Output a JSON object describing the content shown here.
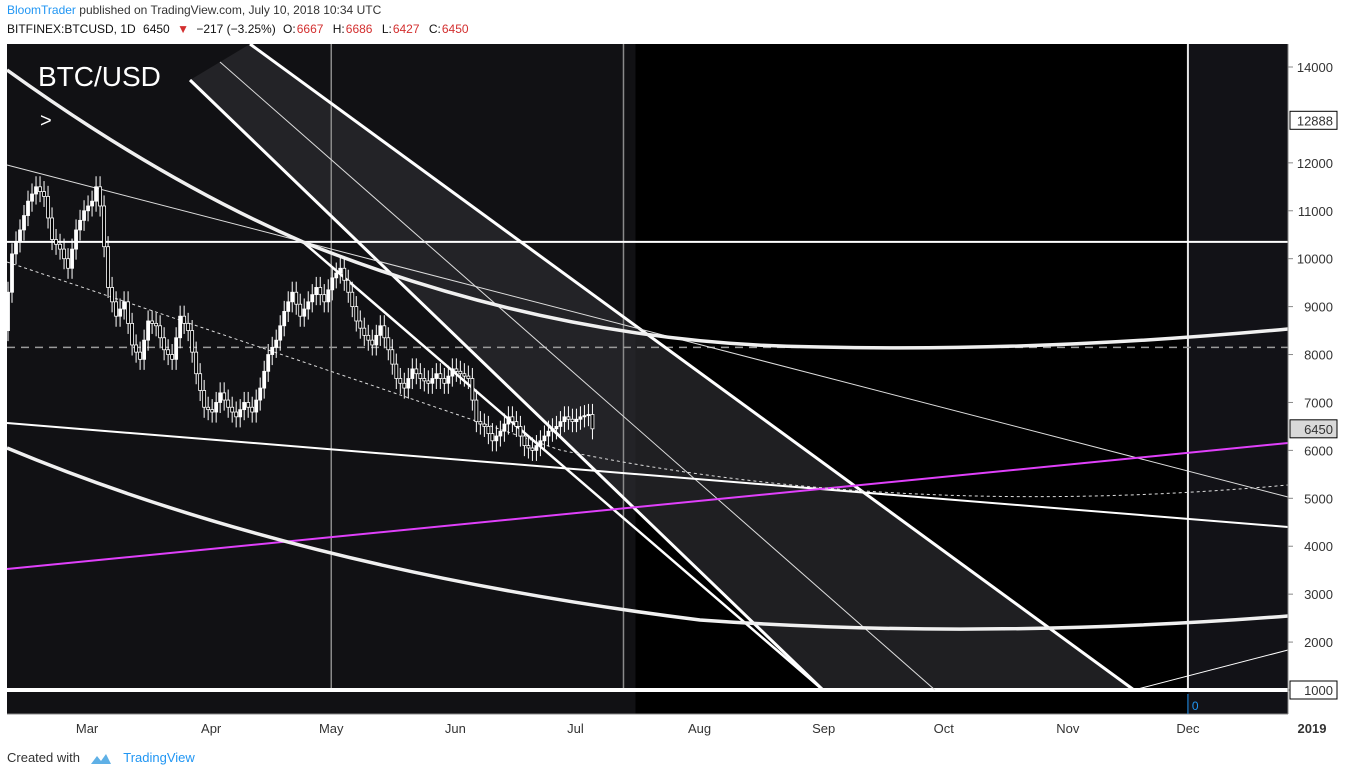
{
  "header": {
    "author": "BloomTrader",
    "published_text": "published on TradingView.com, July 10, 2018 10:34 UTC",
    "symbol": "BITFINEX:BTCUSD, 1D",
    "last": "6450",
    "change_arrow": "▼",
    "change": "−217 (−3.25%)",
    "open_label": "O:",
    "open": "6667",
    "high_label": "H:",
    "high": "6686",
    "low_label": "L:",
    "low": "6427",
    "close_label": "C:",
    "close": "6450"
  },
  "chart_data": {
    "type": "candlestick",
    "title": "BTC/USD",
    "annotation": ">",
    "ylim": [
      500,
      14500
    ],
    "y_ticks": [
      1000,
      2000,
      3000,
      4000,
      5000,
      6000,
      7000,
      8000,
      9000,
      10000,
      11000,
      12000,
      14000
    ],
    "y_tick_labels": [
      "1000",
      "2000",
      "3000",
      "4000",
      "5000",
      "6000",
      "7000",
      "8000",
      "9000",
      "10000",
      "11000",
      "12000",
      "14000"
    ],
    "x_labels": [
      "Mar",
      "Apr",
      "May",
      "Jun",
      "Jul",
      "Aug",
      "Sep",
      "Oct",
      "Nov",
      "Dec",
      "2019"
    ],
    "x_label_days": [
      32,
      63,
      93,
      124,
      154,
      185,
      216,
      246,
      277,
      307,
      338
    ],
    "x_range_days": [
      12,
      332
    ],
    "price_tags": [
      {
        "value": 12888,
        "label": "12888"
      },
      {
        "value": 6450,
        "label": "6450"
      },
      {
        "value": 1000,
        "label": "1000"
      }
    ],
    "marker_label": "0",
    "marker_day": 307,
    "horizontal_levels": [
      10350,
      1000
    ],
    "dashed_level": 8150,
    "vertical_lines_days": [
      93,
      166,
      307
    ],
    "price_path": [
      [
        12,
        8500
      ],
      [
        14,
        10100
      ],
      [
        16,
        10600
      ],
      [
        18,
        11200
      ],
      [
        20,
        11500
      ],
      [
        22,
        11300
      ],
      [
        24,
        10400
      ],
      [
        26,
        10200
      ],
      [
        28,
        9800
      ],
      [
        30,
        10600
      ],
      [
        32,
        11000
      ],
      [
        34,
        11200
      ],
      [
        35,
        11500
      ],
      [
        36,
        11100
      ],
      [
        38,
        9400
      ],
      [
        40,
        8800
      ],
      [
        42,
        9100
      ],
      [
        44,
        8200
      ],
      [
        46,
        7900
      ],
      [
        48,
        8700
      ],
      [
        50,
        8600
      ],
      [
        52,
        8100
      ],
      [
        54,
        7900
      ],
      [
        56,
        8800
      ],
      [
        58,
        8500
      ],
      [
        60,
        7600
      ],
      [
        62,
        6900
      ],
      [
        64,
        6800
      ],
      [
        66,
        7200
      ],
      [
        68,
        6900
      ],
      [
        70,
        6700
      ],
      [
        72,
        7000
      ],
      [
        74,
        6800
      ],
      [
        76,
        7300
      ],
      [
        78,
        8000
      ],
      [
        80,
        8300
      ],
      [
        82,
        8900
      ],
      [
        84,
        9300
      ],
      [
        86,
        8800
      ],
      [
        88,
        9100
      ],
      [
        90,
        9400
      ],
      [
        92,
        9100
      ],
      [
        94,
        9600
      ],
      [
        96,
        9800
      ],
      [
        98,
        9300
      ],
      [
        100,
        8700
      ],
      [
        102,
        8400
      ],
      [
        104,
        8200
      ],
      [
        106,
        8600
      ],
      [
        108,
        8100
      ],
      [
        110,
        7500
      ],
      [
        112,
        7300
      ],
      [
        114,
        7700
      ],
      [
        116,
        7500
      ],
      [
        118,
        7400
      ],
      [
        120,
        7600
      ],
      [
        122,
        7400
      ],
      [
        124,
        7700
      ],
      [
        126,
        7600
      ],
      [
        128,
        7500
      ],
      [
        130,
        6600
      ],
      [
        132,
        6500
      ],
      [
        134,
        6200
      ],
      [
        136,
        6400
      ],
      [
        138,
        6700
      ],
      [
        140,
        6500
      ],
      [
        142,
        6100
      ],
      [
        144,
        6000
      ],
      [
        146,
        6200
      ],
      [
        148,
        6400
      ],
      [
        150,
        6500
      ],
      [
        152,
        6700
      ],
      [
        154,
        6600
      ],
      [
        156,
        6700
      ],
      [
        158,
        6750
      ],
      [
        159,
        6450
      ]
    ]
  },
  "footer": {
    "created_with": "Created with",
    "brand": "TradingView"
  }
}
